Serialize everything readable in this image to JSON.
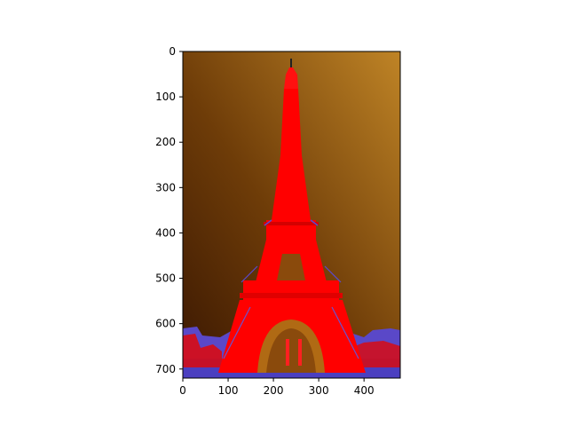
{
  "figure": {
    "image_description": "Eiffel Tower rendered in red with blue/purple edge highlights against a brown-to-amber gradient sky; foliage and buildings at the base in red and blue.",
    "colors": {
      "sky_dark": "#3e1a02",
      "sky_mid": "#7a4308",
      "sky_light": "#b87a22",
      "tower": "#ff0000",
      "tower_edge": "#5a4ad0",
      "ground": "#4b3fc0"
    }
  },
  "axes": {
    "x": {
      "ticks": [
        0,
        100,
        200,
        300,
        400
      ],
      "range": [
        0,
        480
      ]
    },
    "y": {
      "ticks": [
        0,
        100,
        200,
        300,
        400,
        500,
        600,
        700
      ],
      "range": [
        0,
        720
      ]
    },
    "y_inverted": true
  }
}
